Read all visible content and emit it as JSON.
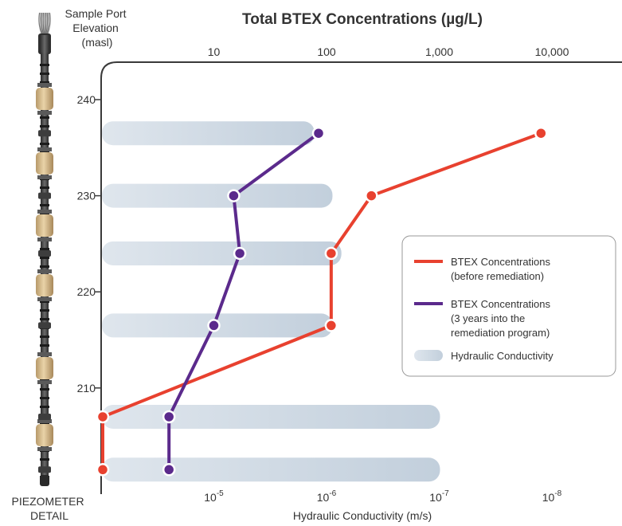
{
  "chart_data": {
    "type": "line",
    "title": "Total BTEX Concentrations (µg/L)",
    "ylabel": "Sample Port Elevation (masl)",
    "ylabel_lines": [
      "Sample Port",
      "Elevation",
      "(masl)"
    ],
    "xlabel_bottom": "Hydraulic Conductivity (m/s)",
    "side_caption_lines": [
      "PIEZOMETER",
      "DETAIL"
    ],
    "ylim": [
      202,
      243
    ],
    "yticks": [
      210,
      220,
      230,
      240
    ],
    "x_top": {
      "scale": "log",
      "lim": [
        1,
        100000
      ],
      "ticks": [
        10,
        100,
        1000,
        10000
      ],
      "tick_labels": [
        "10",
        "100",
        "1,000",
        "10,000"
      ]
    },
    "x_bottom": {
      "scale": "log-reversed",
      "lim": [
        0.0001,
        1e-09
      ],
      "ticks": [
        1e-05,
        1e-06,
        1e-07,
        1e-08
      ],
      "tick_bases": [
        "10",
        "10",
        "10",
        "10"
      ],
      "tick_exps": [
        "-5",
        "-6",
        "-7",
        "-8"
      ]
    },
    "series": [
      {
        "name": "BTEX Concentrations (before remediation)",
        "legend_lines": [
          "BTEX Concentrations",
          "(before remediation)"
        ],
        "color": "#e8412f",
        "x": [
          8000,
          250,
          110,
          110,
          1,
          1
        ],
        "y": [
          236.5,
          230,
          224,
          216.5,
          207,
          201.5
        ]
      },
      {
        "name": "BTEX Concentrations (3 years into the remediation program)",
        "legend_lines": [
          "BTEX Concentrations",
          "(3 years into the",
          "remediation program)"
        ],
        "color": "#5b2a8c",
        "x": [
          85,
          15,
          17,
          10,
          4,
          4
        ],
        "y": [
          236.5,
          230,
          224,
          216.5,
          207,
          201.5
        ]
      }
    ],
    "hydraulic_conductivity": {
      "name": "Hydraulic Conductivity",
      "legend_lines": [
        "Hydraulic Conductivity"
      ],
      "color": "#c9d5e0",
      "bars": [
        {
          "y": 236.5,
          "k": 1.3e-06
        },
        {
          "y": 230,
          "k": 9e-07
        },
        {
          "y": 224,
          "k": 7.5e-07
        },
        {
          "y": 216.5,
          "k": 9e-07
        },
        {
          "y": 207,
          "k": 1e-07
        },
        {
          "y": 201.5,
          "k": 1e-07
        }
      ]
    },
    "legend_position": "right",
    "grid": false
  }
}
